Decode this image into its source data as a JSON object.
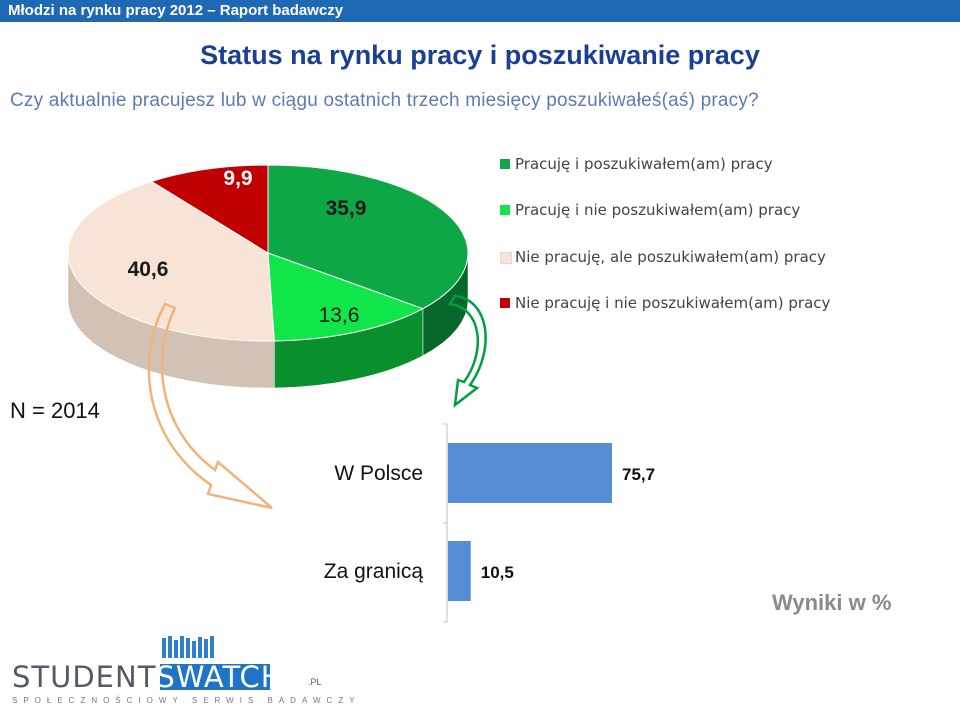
{
  "header": {
    "text": "Młodzi na rynku pracy 2012 – Raport badawczy"
  },
  "title": "Status na rynku pracy i poszukiwanie pracy",
  "question": "Czy aktualnie pracujesz lub w ciągu ostatnich trzech miesięcy poszukiwałeś(aś) pracy?",
  "sample": "N = 2014",
  "results_note": "Wyniki w %",
  "logo": {
    "part1": "STUDENT",
    "part2": "SWATCH",
    "suffix": ".PL",
    "tagline": "SPOŁECZNOŚCIOWY SERWIS BADAWCZY"
  },
  "chart_data": [
    {
      "type": "pie",
      "style": "3d",
      "legend_position": "right",
      "slices": [
        {
          "label": "Pracuję i poszukiwałem(am) pracy",
          "value": 35.9,
          "value_text": "35,9",
          "color": "#0da845"
        },
        {
          "label": "Pracuję i nie poszukiwałem(am) pracy",
          "value": 13.6,
          "value_text": "13,6",
          "color": "#10e64a"
        },
        {
          "label": "Nie pracuję, ale poszukiwałem(am) pracy",
          "value": 40.6,
          "value_text": "40,6",
          "color": "#f7e4d6"
        },
        {
          "label": "Nie pracuję i nie poszukiwałem(am) pracy",
          "value": 9.9,
          "value_text": "9,9",
          "color": "#c00000"
        }
      ]
    },
    {
      "type": "bar",
      "orientation": "horizontal",
      "categories": [
        "W Polsce",
        "Za granicą"
      ],
      "values": [
        75.7,
        10.5
      ],
      "value_labels": [
        "75,7",
        "10,5"
      ],
      "color": "#558ed5",
      "xlim": [
        0,
        100
      ]
    }
  ]
}
